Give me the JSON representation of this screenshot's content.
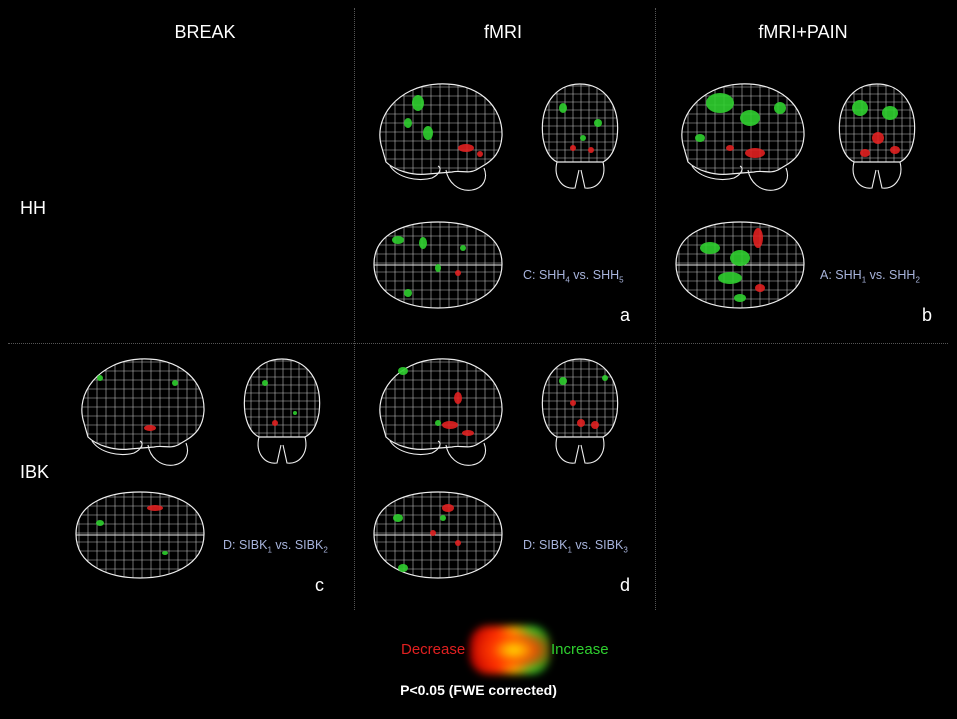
{
  "columns": [
    {
      "label": "BREAK"
    },
    {
      "label": "fMRI"
    },
    {
      "label": "fMRI+PAIN"
    }
  ],
  "rows": [
    {
      "label": "HH"
    },
    {
      "label": "IBK"
    }
  ],
  "panels": {
    "a": {
      "letter": "a",
      "contrast_prefix": "C: SHH",
      "sub1": "4",
      "mid": " vs. SHH",
      "sub2": "5"
    },
    "b": {
      "letter": "b",
      "contrast_prefix": "A: SHH",
      "sub1": "1",
      "mid": " vs. SHH",
      "sub2": "2"
    },
    "c": {
      "letter": "c",
      "contrast_prefix": "D: SIBK",
      "sub1": "1",
      "mid": " vs. SIBK",
      "sub2": "2"
    },
    "d": {
      "letter": "d",
      "contrast_prefix": "D: SIBK",
      "sub1": "1",
      "mid": " vs. SIBK",
      "sub2": "3"
    }
  },
  "legend": {
    "decrease": "Decrease",
    "increase": "Increase",
    "note": "P<0.05 (FWE corrected)"
  },
  "colors": {
    "decrease": "#e02020",
    "increase": "#2fcf2f",
    "contrast_text": "#a8b4dc"
  }
}
